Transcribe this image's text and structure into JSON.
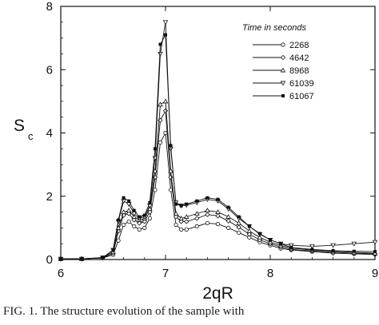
{
  "caption": "FIG. 1.   The structure evolution of the sample with",
  "chart_data": {
    "type": "line",
    "xlabel": "2qR",
    "ylabel_main": "S",
    "ylabel_sub": "c",
    "xlim": [
      6,
      9
    ],
    "ylim": [
      0,
      8
    ],
    "xticks": [
      6,
      7,
      8,
      9
    ],
    "yticks": [
      0,
      2,
      4,
      6,
      8
    ],
    "grid": false,
    "legend": {
      "title": "Time in seconds",
      "placement": "top-right"
    },
    "x": [
      6.0,
      6.2,
      6.4,
      6.5,
      6.55,
      6.6,
      6.65,
      6.7,
      6.75,
      6.8,
      6.85,
      6.9,
      6.95,
      7.0,
      7.05,
      7.1,
      7.15,
      7.2,
      7.3,
      7.4,
      7.5,
      7.6,
      7.7,
      7.8,
      7.9,
      8.0,
      8.1,
      8.2,
      8.4,
      8.6,
      8.8,
      9.0
    ],
    "series": [
      {
        "name": "2268",
        "marker": "circle",
        "values": [
          0.02,
          0.02,
          0.05,
          0.15,
          0.6,
          1.1,
          1.2,
          1.05,
          0.95,
          1.0,
          1.3,
          2.2,
          3.7,
          4.0,
          2.2,
          1.1,
          0.95,
          0.95,
          1.05,
          1.15,
          1.12,
          1.0,
          0.85,
          0.7,
          0.55,
          0.45,
          0.35,
          0.3,
          0.25,
          0.2,
          0.18,
          0.16
        ]
      },
      {
        "name": "4642",
        "marker": "diamond",
        "values": [
          0.02,
          0.02,
          0.05,
          0.2,
          0.9,
          1.4,
          1.45,
          1.25,
          1.15,
          1.2,
          1.5,
          2.6,
          4.4,
          4.7,
          2.6,
          1.35,
          1.2,
          1.2,
          1.3,
          1.42,
          1.38,
          1.22,
          1.02,
          0.8,
          0.62,
          0.5,
          0.4,
          0.32,
          0.27,
          0.23,
          0.2,
          0.18
        ]
      },
      {
        "name": "8968",
        "marker": "triangle-up",
        "values": [
          0.02,
          0.02,
          0.05,
          0.25,
          1.0,
          1.5,
          1.55,
          1.35,
          1.25,
          1.3,
          1.6,
          2.8,
          4.9,
          5.0,
          2.8,
          1.45,
          1.3,
          1.35,
          1.45,
          1.55,
          1.5,
          1.35,
          1.15,
          0.9,
          0.7,
          0.55,
          0.45,
          0.36,
          0.3,
          0.26,
          0.23,
          0.2
        ]
      },
      {
        "name": "61039",
        "marker": "triangle-down",
        "values": [
          0.02,
          0.02,
          0.06,
          0.3,
          1.2,
          1.85,
          1.75,
          1.45,
          1.3,
          1.35,
          1.7,
          3.2,
          6.5,
          7.5,
          3.5,
          1.8,
          1.7,
          1.72,
          1.8,
          1.9,
          1.85,
          1.6,
          1.3,
          1.05,
          0.8,
          0.62,
          0.5,
          0.45,
          0.42,
          0.45,
          0.5,
          0.55
        ]
      },
      {
        "name": "61067",
        "marker": "square-filled",
        "values": [
          0.02,
          0.02,
          0.06,
          0.3,
          1.25,
          1.95,
          1.85,
          1.55,
          1.35,
          1.4,
          1.8,
          3.5,
          6.8,
          7.1,
          3.6,
          1.75,
          1.7,
          1.75,
          1.85,
          1.95,
          1.9,
          1.65,
          1.35,
          1.05,
          0.82,
          0.62,
          0.5,
          0.38,
          0.32,
          0.28,
          0.26,
          0.25
        ]
      }
    ]
  }
}
